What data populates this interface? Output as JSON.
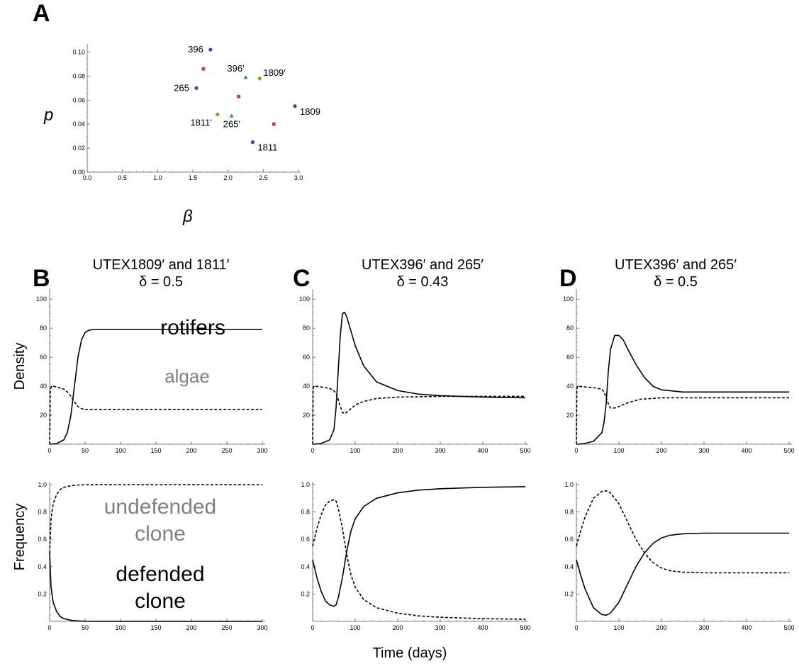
{
  "panel_a": {
    "letter": "A",
    "xlabel": "β",
    "ylabel": "p",
    "xticks": [
      "0.0",
      "0.5",
      "1.0",
      "1.5",
      "2.0",
      "2.5",
      "3.0"
    ],
    "yticks": [
      "0.00",
      "0.02",
      "0.04",
      "0.06",
      "0.08",
      "0.10"
    ],
    "colors": {
      "circle": "#4b3fa0",
      "square": "#b0407a",
      "triangle": "#2e9e4a",
      "diamond": "#a58a30"
    }
  },
  "panel_b": {
    "letter": "B",
    "title_line1": "UTEX1809′ and 1811′",
    "title_line2": "δ = 0.5",
    "labels": {
      "rotifers": "rotifers",
      "algae": "algae",
      "undefended": "undefended",
      "clone": "clone",
      "defended": "defended",
      "clone2": "clone"
    }
  },
  "panel_c": {
    "letter": "C",
    "title_line1": "UTEX396′ and 265′",
    "title_line2": "δ = 0.43"
  },
  "panel_d": {
    "letter": "D",
    "title_line1": "UTEX396′ and 265′",
    "title_line2": "δ = 0.5"
  },
  "axes": {
    "density_label": "Density",
    "frequency_label": "Frequency",
    "time_label": "Time (days)",
    "density_yticks": [
      "20",
      "40",
      "60",
      "80",
      "100"
    ],
    "frequency_yticks": [
      "0.2",
      "0.4",
      "0.6",
      "0.8",
      "1.0"
    ],
    "xticks_300": [
      "0",
      "50",
      "100",
      "150",
      "200",
      "250",
      "300"
    ],
    "xticks_500": [
      "0",
      "100",
      "200",
      "300",
      "400",
      "500"
    ]
  },
  "chart_data": [
    {
      "type": "scatter",
      "panel": "A",
      "xlabel": "β",
      "ylabel": "p",
      "xlim": [
        0,
        3
      ],
      "ylim": [
        0,
        0.105
      ],
      "series": [
        {
          "marker": "circle",
          "points": [
            {
              "x": 1.75,
              "y": 0.102,
              "label": "396"
            },
            {
              "x": 1.55,
              "y": 0.07,
              "label": "265"
            },
            {
              "x": 2.95,
              "y": 0.055,
              "label": "1809"
            },
            {
              "x": 2.35,
              "y": 0.025,
              "label": "1811"
            }
          ]
        },
        {
          "marker": "square",
          "points": [
            {
              "x": 1.65,
              "y": 0.086,
              "label": ""
            },
            {
              "x": 2.15,
              "y": 0.063,
              "label": ""
            },
            {
              "x": 2.65,
              "y": 0.04,
              "label": ""
            }
          ]
        },
        {
          "marker": "triangle",
          "points": [
            {
              "x": 2.25,
              "y": 0.079,
              "label": "396′"
            },
            {
              "x": 2.05,
              "y": 0.047,
              "label": "265′"
            }
          ]
        },
        {
          "marker": "diamond",
          "points": [
            {
              "x": 2.45,
              "y": 0.078,
              "label": "1809′"
            },
            {
              "x": 1.85,
              "y": 0.048,
              "label": "1811′"
            }
          ]
        }
      ]
    },
    {
      "type": "line",
      "panel": "B-density",
      "xlim": [
        0,
        300
      ],
      "ylim": [
        0,
        105
      ],
      "series": [
        {
          "role": "rotifers",
          "style": "solid",
          "x": [
            0,
            10,
            20,
            25,
            30,
            35,
            40,
            45,
            50,
            55,
            60,
            80,
            150,
            300
          ],
          "y": [
            0,
            0.5,
            3,
            8,
            20,
            40,
            60,
            72,
            77,
            78.5,
            79,
            79,
            79,
            79
          ]
        },
        {
          "role": "algae",
          "style": "dashed",
          "x": [
            0,
            1,
            3,
            5,
            10,
            20,
            25,
            30,
            35,
            40,
            45,
            50,
            60,
            100,
            300
          ],
          "y": [
            0,
            38,
            40,
            40,
            39.5,
            38,
            36,
            33,
            29,
            26,
            24.5,
            24,
            24,
            24,
            24
          ]
        }
      ]
    },
    {
      "type": "line",
      "panel": "C-density",
      "xlim": [
        0,
        500
      ],
      "ylim": [
        0,
        105
      ],
      "series": [
        {
          "role": "rotifers",
          "style": "solid",
          "x": [
            0,
            20,
            40,
            50,
            55,
            60,
            65,
            70,
            75,
            80,
            90,
            100,
            120,
            150,
            200,
            250,
            300,
            350,
            400,
            500
          ],
          "y": [
            0,
            0.5,
            3,
            10,
            25,
            50,
            75,
            90,
            91,
            88,
            78,
            68,
            54,
            43,
            37,
            34.5,
            33.5,
            33,
            32.5,
            32
          ]
        },
        {
          "role": "algae",
          "style": "dashed",
          "x": [
            0,
            1,
            3,
            5,
            20,
            40,
            50,
            55,
            60,
            65,
            70,
            75,
            80,
            90,
            100,
            120,
            150,
            200,
            300,
            400,
            500
          ],
          "y": [
            0,
            38,
            40,
            40,
            39.5,
            38.5,
            37,
            35,
            31,
            26,
            22,
            21,
            22,
            24.5,
            27,
            29.5,
            31.5,
            32.5,
            33,
            33,
            33
          ]
        }
      ]
    },
    {
      "type": "line",
      "panel": "D-density",
      "xlim": [
        0,
        500
      ],
      "ylim": [
        0,
        105
      ],
      "series": [
        {
          "role": "rotifers",
          "style": "solid",
          "x": [
            0,
            20,
            40,
            60,
            65,
            70,
            75,
            80,
            90,
            100,
            110,
            120,
            140,
            160,
            180,
            200,
            250,
            300,
            400,
            500
          ],
          "y": [
            0,
            0.5,
            2,
            8,
            15,
            28,
            50,
            65,
            75,
            75,
            72,
            66,
            55,
            46,
            40,
            37.5,
            36,
            36,
            36,
            36
          ]
        },
        {
          "role": "algae",
          "style": "dashed",
          "x": [
            0,
            1,
            3,
            5,
            20,
            40,
            60,
            65,
            70,
            75,
            80,
            90,
            100,
            120,
            150,
            200,
            250,
            300,
            400,
            500
          ],
          "y": [
            0,
            38,
            40,
            40,
            39.5,
            39,
            38,
            36,
            32,
            28,
            25,
            25,
            26,
            28.5,
            31,
            32,
            32,
            32,
            32,
            32
          ]
        }
      ]
    },
    {
      "type": "line",
      "panel": "B-frequency",
      "xlim": [
        0,
        300
      ],
      "ylim": [
        0,
        1
      ],
      "series": [
        {
          "role": "undefended clone",
          "style": "dashed",
          "x": [
            0,
            2,
            5,
            10,
            15,
            20,
            30,
            40,
            50,
            70,
            100,
            300
          ],
          "y": [
            0.5,
            0.75,
            0.86,
            0.93,
            0.965,
            0.98,
            0.992,
            0.997,
            0.999,
            1,
            1,
            1
          ]
        },
        {
          "role": "defended clone",
          "style": "solid",
          "x": [
            0,
            2,
            5,
            10,
            15,
            20,
            30,
            40,
            50,
            70,
            100,
            300
          ],
          "y": [
            0.5,
            0.25,
            0.14,
            0.07,
            0.035,
            0.02,
            0.008,
            0.003,
            0.001,
            0,
            0,
            0
          ]
        }
      ]
    },
    {
      "type": "line",
      "panel": "C-frequency",
      "xlim": [
        0,
        500
      ],
      "ylim": [
        0,
        1
      ],
      "series": [
        {
          "role": "dashed",
          "style": "dashed",
          "x": [
            0,
            10,
            20,
            30,
            40,
            50,
            55,
            60,
            70,
            80,
            90,
            100,
            120,
            150,
            200,
            250,
            300,
            400,
            500
          ],
          "y": [
            0.55,
            0.68,
            0.78,
            0.85,
            0.88,
            0.89,
            0.88,
            0.83,
            0.68,
            0.49,
            0.34,
            0.25,
            0.16,
            0.1,
            0.06,
            0.04,
            0.03,
            0.02,
            0.015
          ]
        },
        {
          "role": "solid",
          "style": "solid",
          "x": [
            0,
            10,
            20,
            30,
            40,
            50,
            55,
            60,
            70,
            80,
            90,
            100,
            120,
            150,
            200,
            250,
            300,
            400,
            500
          ],
          "y": [
            0.45,
            0.32,
            0.22,
            0.15,
            0.12,
            0.11,
            0.12,
            0.17,
            0.32,
            0.51,
            0.66,
            0.75,
            0.84,
            0.9,
            0.94,
            0.96,
            0.97,
            0.98,
            0.985
          ]
        }
      ]
    },
    {
      "type": "line",
      "panel": "D-frequency",
      "xlim": [
        0,
        500
      ],
      "ylim": [
        0,
        1
      ],
      "series": [
        {
          "role": "dashed",
          "style": "dashed",
          "x": [
            0,
            10,
            20,
            40,
            60,
            70,
            80,
            100,
            120,
            140,
            160,
            180,
            200,
            220,
            250,
            300,
            400,
            500
          ],
          "y": [
            0.55,
            0.66,
            0.76,
            0.9,
            0.95,
            0.955,
            0.94,
            0.86,
            0.73,
            0.6,
            0.5,
            0.43,
            0.39,
            0.37,
            0.36,
            0.355,
            0.355,
            0.355
          ]
        },
        {
          "role": "solid",
          "style": "solid",
          "x": [
            0,
            10,
            20,
            40,
            60,
            70,
            80,
            100,
            120,
            140,
            160,
            180,
            200,
            220,
            250,
            300,
            400,
            500
          ],
          "y": [
            0.45,
            0.34,
            0.24,
            0.1,
            0.05,
            0.045,
            0.06,
            0.14,
            0.27,
            0.4,
            0.5,
            0.57,
            0.61,
            0.63,
            0.64,
            0.645,
            0.645,
            0.645
          ]
        }
      ]
    }
  ]
}
